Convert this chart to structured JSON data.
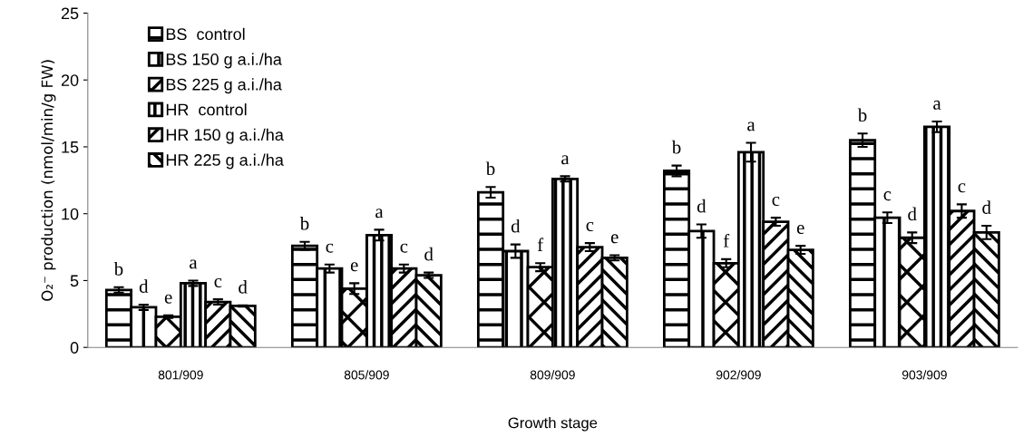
{
  "chart_data": {
    "type": "bar",
    "xlabel": "Growth stage",
    "ylabel": "O₂⁻ production (nmol/min/g FW)",
    "categories": [
      "801/909",
      "805/909",
      "809/909",
      "902/909",
      "903/909"
    ],
    "ylim": [
      0,
      25
    ],
    "yticks": [
      0,
      5,
      10,
      15,
      20,
      25
    ],
    "grid": false,
    "legend": "top left",
    "series": [
      {
        "name": "BS  control",
        "color": "#000000",
        "values": [
          4.3,
          7.6,
          11.6,
          13.2,
          15.5
        ],
        "errors": [
          0.2,
          0.3,
          0.4,
          0.4,
          0.5
        ],
        "value_labels": [
          "b",
          "b",
          "b",
          "b",
          "b"
        ]
      },
      {
        "name": "BS 150 g a.i./ha",
        "color": "#000000",
        "values": [
          3.0,
          5.9,
          7.2,
          8.7,
          9.7
        ],
        "errors": [
          0.2,
          0.3,
          0.5,
          0.5,
          0.4
        ],
        "value_labels": [
          "d",
          "c",
          "d",
          "d",
          "c"
        ]
      },
      {
        "name": "BS 225 g a.i./ha",
        "color": "#000000",
        "values": [
          2.3,
          4.4,
          6.0,
          6.3,
          8.2
        ],
        "errors": [
          0.1,
          0.4,
          0.3,
          0.3,
          0.4
        ],
        "value_labels": [
          "e",
          "e",
          "f",
          "f",
          "d"
        ]
      },
      {
        "name": "HR  control",
        "color": "#000000",
        "values": [
          4.8,
          8.4,
          12.6,
          14.6,
          16.5
        ],
        "errors": [
          0.2,
          0.4,
          0.2,
          0.7,
          0.4
        ],
        "value_labels": [
          "a",
          "a",
          "a",
          "a",
          "a"
        ]
      },
      {
        "name": "HR 150 g a.i./ha",
        "color": "#000000",
        "values": [
          3.4,
          5.9,
          7.5,
          9.4,
          10.2
        ],
        "errors": [
          0.2,
          0.3,
          0.3,
          0.3,
          0.5
        ],
        "value_labels": [
          "c",
          "c",
          "c",
          "c",
          "c"
        ]
      },
      {
        "name": "HR 225 g a.i./ha",
        "color": "#000000",
        "values": [
          3.1,
          5.4,
          6.7,
          7.3,
          8.6
        ],
        "errors": [
          0.05,
          0.2,
          0.2,
          0.3,
          0.5
        ],
        "value_labels": [
          "d",
          "d",
          "e",
          "e",
          "d"
        ]
      }
    ]
  }
}
